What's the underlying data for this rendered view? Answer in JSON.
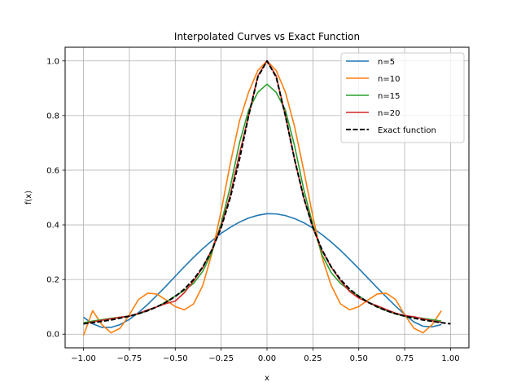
{
  "chart_data": {
    "type": "line",
    "title": "Interpolated Curves vs Exact Function",
    "xlabel": "x",
    "ylabel": "f(x)",
    "xlim": [
      -1.1,
      1.1
    ],
    "ylim": [
      -0.05,
      1.05
    ],
    "xticks": [
      -1.0,
      -0.75,
      -0.5,
      -0.25,
      0.0,
      0.25,
      0.5,
      0.75,
      1.0
    ],
    "xtick_labels": [
      "−1.00",
      "−0.75",
      "−0.50",
      "−0.25",
      "0.00",
      "0.25",
      "0.50",
      "0.75",
      "1.00"
    ],
    "yticks": [
      0.0,
      0.2,
      0.4,
      0.6,
      0.8,
      1.0
    ],
    "ytick_labels": [
      "0.0",
      "0.2",
      "0.4",
      "0.6",
      "0.8",
      "1.0"
    ],
    "grid": true,
    "legend_position": "top-right",
    "series": [
      {
        "name": "n=5",
        "color": "#1f77b4",
        "dash": "solid",
        "x": [
          -1.0,
          -0.95,
          -0.9,
          -0.85,
          -0.8,
          -0.75,
          -0.7,
          -0.65,
          -0.6,
          -0.55,
          -0.5,
          -0.45,
          -0.4,
          -0.35,
          -0.3,
          -0.25,
          -0.2,
          -0.15,
          -0.1,
          -0.05,
          0.0,
          0.05,
          0.1,
          0.15,
          0.2,
          0.25,
          0.3,
          0.35,
          0.4,
          0.45,
          0.5,
          0.55,
          0.6,
          0.65,
          0.7,
          0.75,
          0.8,
          0.85,
          0.9,
          0.95
        ],
        "y": [
          0.062,
          0.038,
          0.025,
          0.025,
          0.035,
          0.054,
          0.079,
          0.109,
          0.142,
          0.176,
          0.212,
          0.247,
          0.281,
          0.313,
          0.342,
          0.369,
          0.391,
          0.41,
          0.425,
          0.435,
          0.441,
          0.44,
          0.434,
          0.423,
          0.408,
          0.388,
          0.364,
          0.337,
          0.307,
          0.274,
          0.24,
          0.205,
          0.17,
          0.136,
          0.103,
          0.072,
          0.045,
          0.029,
          0.027,
          0.035
        ]
      },
      {
        "name": "n=10",
        "color": "#ff7f0e",
        "dash": "solid",
        "x": [
          -1.0,
          -0.95,
          -0.9,
          -0.85,
          -0.8,
          -0.75,
          -0.7,
          -0.65,
          -0.6,
          -0.55,
          -0.5,
          -0.45,
          -0.4,
          -0.35,
          -0.3,
          -0.25,
          -0.2,
          -0.15,
          -0.1,
          -0.05,
          0.0,
          0.05,
          0.1,
          0.15,
          0.2,
          0.25,
          0.3,
          0.35,
          0.4,
          0.45,
          0.5,
          0.55,
          0.6,
          0.65,
          0.7,
          0.75,
          0.8,
          0.85,
          0.9,
          0.95
        ],
        "y": [
          -0.005,
          0.086,
          0.035,
          0.005,
          0.022,
          0.071,
          0.127,
          0.15,
          0.147,
          0.125,
          0.101,
          0.089,
          0.111,
          0.178,
          0.296,
          0.45,
          0.625,
          0.78,
          0.886,
          0.965,
          1.0,
          0.965,
          0.886,
          0.76,
          0.6,
          0.43,
          0.28,
          0.178,
          0.111,
          0.089,
          0.101,
          0.125,
          0.147,
          0.15,
          0.127,
          0.071,
          0.022,
          0.005,
          0.035,
          0.086
        ]
      },
      {
        "name": "n=15",
        "color": "#2ca02c",
        "dash": "solid",
        "x": [
          -1.0,
          -0.95,
          -0.9,
          -0.85,
          -0.8,
          -0.75,
          -0.7,
          -0.65,
          -0.6,
          -0.55,
          -0.5,
          -0.45,
          -0.4,
          -0.35,
          -0.3,
          -0.25,
          -0.2,
          -0.15,
          -0.1,
          -0.05,
          0.0,
          0.05,
          0.1,
          0.15,
          0.2,
          0.25,
          0.3,
          0.35,
          0.4,
          0.45,
          0.5,
          0.55,
          0.6,
          0.65,
          0.7,
          0.75,
          0.8,
          0.85,
          0.9,
          0.95
        ],
        "y": [
          0.042,
          0.048,
          0.053,
          0.058,
          0.062,
          0.066,
          0.074,
          0.086,
          0.1,
          0.118,
          0.14,
          0.16,
          0.186,
          0.23,
          0.3,
          0.405,
          0.54,
          0.7,
          0.82,
          0.885,
          0.915,
          0.885,
          0.82,
          0.69,
          0.53,
          0.4,
          0.29,
          0.225,
          0.186,
          0.16,
          0.14,
          0.118,
          0.1,
          0.086,
          0.074,
          0.066,
          0.062,
          0.058,
          0.053,
          0.048
        ]
      },
      {
        "name": "n=20",
        "color": "#d62728",
        "dash": "solid",
        "x": [
          -1.0,
          -0.95,
          -0.9,
          -0.85,
          -0.8,
          -0.75,
          -0.7,
          -0.65,
          -0.6,
          -0.55,
          -0.5,
          -0.45,
          -0.4,
          -0.35,
          -0.3,
          -0.25,
          -0.2,
          -0.15,
          -0.1,
          -0.05,
          0.0,
          0.05,
          0.1,
          0.15,
          0.2,
          0.25,
          0.3,
          0.35,
          0.4,
          0.45,
          0.5,
          0.55,
          0.6,
          0.65,
          0.7,
          0.75,
          0.8,
          0.85,
          0.9,
          0.95
        ],
        "y": [
          0.038,
          0.045,
          0.051,
          0.056,
          0.062,
          0.066,
          0.076,
          0.089,
          0.1,
          0.112,
          0.121,
          0.152,
          0.195,
          0.244,
          0.31,
          0.395,
          0.51,
          0.66,
          0.8,
          0.945,
          1.0,
          0.945,
          0.8,
          0.64,
          0.5,
          0.39,
          0.305,
          0.245,
          0.196,
          0.156,
          0.132,
          0.117,
          0.104,
          0.09,
          0.077,
          0.068,
          0.064,
          0.056,
          0.049,
          0.043
        ]
      },
      {
        "name": "Exact function",
        "color": "#000000",
        "dash": "dashed",
        "x": [
          -1.0,
          -0.95,
          -0.9,
          -0.85,
          -0.8,
          -0.75,
          -0.7,
          -0.65,
          -0.6,
          -0.55,
          -0.5,
          -0.45,
          -0.4,
          -0.35,
          -0.3,
          -0.25,
          -0.2,
          -0.15,
          -0.1,
          -0.05,
          0.0,
          0.05,
          0.1,
          0.15,
          0.2,
          0.25,
          0.3,
          0.35,
          0.4,
          0.45,
          0.5,
          0.55,
          0.6,
          0.65,
          0.7,
          0.75,
          0.8,
          0.85,
          0.9,
          0.95,
          1.0
        ],
        "y": [
          0.038,
          0.042,
          0.047,
          0.052,
          0.059,
          0.066,
          0.075,
          0.086,
          0.1,
          0.117,
          0.138,
          0.165,
          0.2,
          0.246,
          0.308,
          0.39,
          0.5,
          0.64,
          0.8,
          0.941,
          1.0,
          0.941,
          0.8,
          0.64,
          0.5,
          0.39,
          0.308,
          0.246,
          0.2,
          0.165,
          0.138,
          0.117,
          0.1,
          0.086,
          0.075,
          0.066,
          0.059,
          0.052,
          0.047,
          0.042,
          0.038
        ]
      }
    ]
  }
}
